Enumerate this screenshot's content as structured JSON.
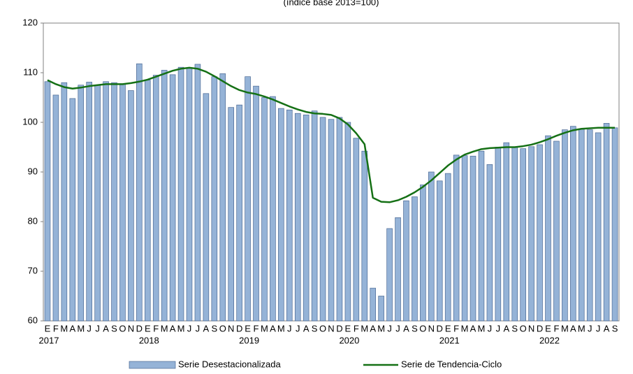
{
  "chart_data": {
    "type": "bar-line",
    "subtitle": "(índice base 2013=100)",
    "categories": [
      "E",
      "F",
      "M",
      "A",
      "M",
      "J",
      "J",
      "A",
      "S",
      "O",
      "N",
      "D",
      "E",
      "F",
      "M",
      "A",
      "M",
      "J",
      "J",
      "A",
      "S",
      "O",
      "N",
      "D",
      "E",
      "F",
      "M",
      "A",
      "M",
      "J",
      "J",
      "A",
      "S",
      "O",
      "N",
      "D",
      "E",
      "F",
      "M",
      "A",
      "M",
      "J",
      "J",
      "A",
      "S",
      "O",
      "N",
      "D",
      "E",
      "F",
      "M",
      "A",
      "M",
      "J",
      "J",
      "A",
      "S",
      "O",
      "N",
      "D",
      "E",
      "F",
      "M",
      "A",
      "M",
      "J",
      "J",
      "A",
      "S"
    ],
    "years": [
      "2017",
      "2018",
      "2019",
      "2020",
      "2021",
      "2022"
    ],
    "series": [
      {
        "name": "Serie Desestacionalizada",
        "type": "bar",
        "color": "#95b3d7",
        "values": [
          108.2,
          105.5,
          108,
          104.8,
          107.5,
          108.1,
          107.5,
          108.2,
          108,
          107.7,
          106.4,
          111.8,
          108.5,
          109.5,
          110.5,
          109.6,
          111.1,
          111,
          111.7,
          105.8,
          109.2,
          109.8,
          103,
          103.5,
          109.2,
          107.3,
          105,
          105.2,
          102.8,
          102.5,
          101.8,
          101.5,
          102.3,
          101,
          100.6,
          101,
          100,
          96.8,
          94.2,
          66.6,
          65,
          78.6,
          80.8,
          84.2,
          85,
          87.4,
          90,
          88.2,
          89.7,
          93.4,
          93.3,
          93.2,
          94.2,
          91.5,
          95,
          95.9,
          95,
          94.7,
          95.1,
          95.5,
          97.3,
          96.2,
          98.5,
          99.2,
          98.6,
          98.5,
          97.9,
          99.8,
          98.9
        ]
      },
      {
        "name": "Serie de Tendencia-Ciclo",
        "type": "line",
        "color": "#157015",
        "values": [
          108.5,
          107.7,
          107.1,
          106.8,
          107,
          107.3,
          107.5,
          107.7,
          107.7,
          107.7,
          107.9,
          108.2,
          108.6,
          109.2,
          109.8,
          110.4,
          110.8,
          111,
          110.8,
          110.2,
          109.3,
          108.3,
          107.3,
          106.5,
          106,
          105.7,
          105.2,
          104.6,
          103.9,
          103.2,
          102.6,
          102.1,
          101.8,
          101.7,
          101.5,
          100.8,
          99.6,
          97.8,
          95.6,
          84.8,
          84,
          83.9,
          84.3,
          85,
          85.9,
          87,
          88.3,
          89.8,
          91.3,
          92.5,
          93.5,
          94.1,
          94.6,
          94.8,
          94.9,
          95,
          95,
          95.2,
          95.5,
          96,
          96.6,
          97.3,
          97.9,
          98.4,
          98.7,
          98.8,
          98.9,
          98.9,
          98.9
        ]
      }
    ],
    "ylim": [
      60,
      120
    ],
    "yticks": [
      60,
      70,
      80,
      90,
      100,
      110,
      120
    ],
    "grid": false
  }
}
